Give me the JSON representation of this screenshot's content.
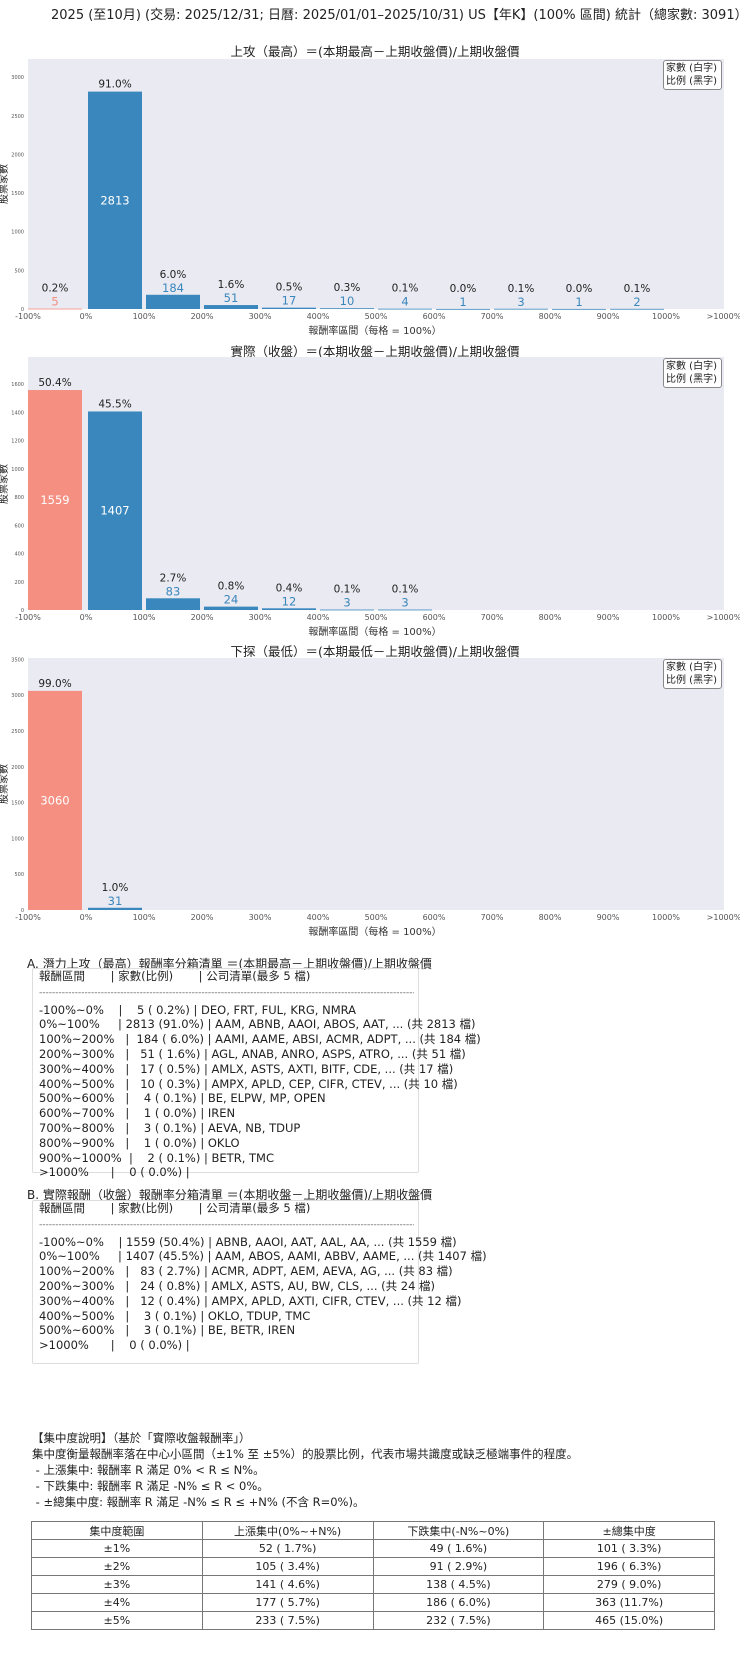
{
  "header": {
    "title": "2025 (至10月) (交易: 2025/12/31; 日曆: 2025/01/01–2025/10/31) US【年K】(100% 區間) 統計（總家數: 3091）"
  },
  "legend": {
    "line1": "家數 (白字)",
    "line2": "比例 (黑字)"
  },
  "colors": {
    "negative_bar": "#f58f82",
    "positive_bar": "#3a87bd",
    "plot_bg": "#eaeaf2"
  },
  "chart_data": [
    {
      "type": "bar",
      "title": "上攻（最高）＝(本期最高－上期收盤價)/上期收盤價",
      "xlabel": "報酬率區間（每格 = 100%）",
      "ylabel": "股票家數",
      "x_ticks": [
        "-100%",
        "0%",
        "100%",
        "200%",
        "300%",
        "400%",
        "500%",
        "600%",
        "700%",
        "800%",
        "900%",
        "1000%",
        ">1000%"
      ],
      "categories": [
        "-100%~0%",
        "0%~100%",
        "100%~200%",
        "200%~300%",
        "300%~400%",
        "400%~500%",
        "500%~600%",
        "600%~700%",
        "700%~800%",
        "800%~900%",
        "900%~1000%",
        ">1000%"
      ],
      "values": [
        5,
        2813,
        184,
        51,
        17,
        10,
        4,
        1,
        3,
        1,
        2,
        0
      ],
      "percent_labels": [
        "0.2%",
        "91.0%",
        "6.0%",
        "1.6%",
        "0.5%",
        "0.3%",
        "0.1%",
        "0.0%",
        "0.1%",
        "0.0%",
        "0.1%",
        ""
      ],
      "y_ticks": [
        0,
        500,
        1000,
        1500,
        2000,
        2500,
        3000
      ],
      "ylim": [
        0,
        3235
      ]
    },
    {
      "type": "bar",
      "title": "實際（收盤）＝(本期收盤－上期收盤價)/上期收盤價",
      "xlabel": "報酬率區間（每格 = 100%）",
      "ylabel": "股票家數",
      "x_ticks": [
        "-100%",
        "0%",
        "100%",
        "200%",
        "300%",
        "400%",
        "500%",
        "600%",
        "700%",
        "800%",
        "900%",
        "1000%",
        ">1000%"
      ],
      "categories": [
        "-100%~0%",
        "0%~100%",
        "100%~200%",
        "200%~300%",
        "300%~400%",
        "400%~500%",
        "500%~600%",
        "600%~700%",
        "700%~800%",
        "800%~900%",
        "900%~1000%",
        ">1000%"
      ],
      "values": [
        1559,
        1407,
        83,
        24,
        12,
        3,
        3,
        0,
        0,
        0,
        0,
        0
      ],
      "percent_labels": [
        "50.4%",
        "45.5%",
        "2.7%",
        "0.8%",
        "0.4%",
        "0.1%",
        "0.1%",
        "",
        "",
        "",
        "",
        ""
      ],
      "y_ticks": [
        0,
        200,
        400,
        600,
        800,
        1000,
        1200,
        1400,
        1600
      ],
      "ylim": [
        0,
        1793
      ]
    },
    {
      "type": "bar",
      "title": "下探（最低）＝(本期最低－上期收盤價)/上期收盤價",
      "xlabel": "報酬率區間（每格 = 100%）",
      "ylabel": "股票家數",
      "x_ticks": [
        "-100%",
        "0%",
        "100%",
        "200%",
        "300%",
        "400%",
        "500%",
        "600%",
        "700%",
        "800%",
        "900%",
        "1000%",
        ">1000%"
      ],
      "categories": [
        "-100%~0%",
        "0%~100%",
        "100%~200%",
        "200%~300%",
        "300%~400%",
        "400%~500%",
        "500%~600%",
        "600%~700%",
        "700%~800%",
        "800%~900%",
        "900%~1000%",
        ">1000%"
      ],
      "values": [
        3060,
        31,
        0,
        0,
        0,
        0,
        0,
        0,
        0,
        0,
        0,
        0
      ],
      "percent_labels": [
        "99.0%",
        "1.0%",
        "",
        "",
        "",
        "",
        "",
        "",
        "",
        "",
        "",
        ""
      ],
      "y_ticks": [
        0,
        500,
        1000,
        1500,
        2000,
        2500,
        3000,
        3500
      ],
      "ylim": [
        0,
        3519
      ]
    }
  ],
  "list_a": {
    "heading": "A. 潛力上攻（最高）報酬率分箱清單 ＝(本期最高－上期收盤價)/上期收盤價",
    "header": "報酬區間       | 家數(比例)       | 公司清單(最多 5 檔)",
    "separator": "--------------------------------------------------------------------------------------------------------------------------------",
    "rows": [
      "-100%~0%    |    5 ( 0.2%) | DEO, FRT, FUL, KRG, NMRA",
      "0%~100%     | 2813 (91.0%) | AAM, ABNB, AAOI, ABOS, AAT, ... (共 2813 檔)",
      "100%~200%   |  184 ( 6.0%) | AAMI, AAME, ABSI, ACMR, ADPT, ... (共 184 檔)",
      "200%~300%   |   51 ( 1.6%) | AGL, ANAB, ANRO, ASPS, ATRO, ... (共 51 檔)",
      "300%~400%   |   17 ( 0.5%) | AMLX, ASTS, AXTI, BITF, CDE, ... (共 17 檔)",
      "400%~500%   |   10 ( 0.3%) | AMPX, APLD, CEP, CIFR, CTEV, ... (共 10 檔)",
      "500%~600%   |    4 ( 0.1%) | BE, ELPW, MP, OPEN",
      "600%~700%   |    1 ( 0.0%) | IREN",
      "700%~800%   |    3 ( 0.1%) | AEVA, NB, TDUP",
      "800%~900%   |    1 ( 0.0%) | OKLO",
      "900%~1000%  |    2 ( 0.1%) | BETR, TMC",
      ">1000%      |    0 ( 0.0%) |"
    ]
  },
  "list_b": {
    "heading": "B. 實際報酬（收盤）報酬率分箱清單 ＝(本期收盤－上期收盤價)/上期收盤價",
    "header": "報酬區間       | 家數(比例)       | 公司清單(最多 5 檔)",
    "separator": "--------------------------------------------------------------------------------------------------------------------------------",
    "rows": [
      "-100%~0%    | 1559 (50.4%) | ABNB, AAOI, AAT, AAL, AA, ... (共 1559 檔)",
      "0%~100%     | 1407 (45.5%) | AAM, ABOS, AAMI, ABBV, AAME, ... (共 1407 檔)",
      "100%~200%   |   83 ( 2.7%) | ACMR, ADPT, AEM, AEVA, AG, ... (共 83 檔)",
      "200%~300%   |   24 ( 0.8%) | AMLX, ASTS, AU, BW, CLS, ... (共 24 檔)",
      "300%~400%   |   12 ( 0.4%) | AMPX, APLD, AXTI, CIFR, CTEV, ... (共 12 檔)",
      "400%~500%   |    3 ( 0.1%) | OKLO, TDUP, TMC",
      "500%~600%   |    3 ( 0.1%) | BE, BETR, IREN",
      ">1000%      |    0 ( 0.0%) |"
    ]
  },
  "concentration": {
    "lines": [
      "【集中度說明】（基於「實際收盤報酬率」）",
      "集中度衡量報酬率落在中心小區間（±1% 至 ±5%）的股票比例，代表市場共識度或缺乏極端事件的程度。",
      " - 上漲集中: 報酬率 R 滿足 0% < R ≤ N%。",
      " - 下跌集中: 報酬率 R 滿足 -N% ≤ R < 0%。",
      " - ±總集中度: 報酬率 R 滿足 -N% ≤ R ≤ +N% (不含 R=0%)。"
    ],
    "table": {
      "headers": [
        "集中度範圍",
        "上漲集中(0%~+N%)",
        "下跌集中(-N%~0%)",
        "±總集中度"
      ],
      "rows": [
        [
          "±1%",
          "52 ( 1.7%)",
          "49 ( 1.6%)",
          "101 ( 3.3%)"
        ],
        [
          "±2%",
          "105 ( 3.4%)",
          "91 ( 2.9%)",
          "196 ( 6.3%)"
        ],
        [
          "±3%",
          "141 ( 4.6%)",
          "138 ( 4.5%)",
          "279 ( 9.0%)"
        ],
        [
          "±4%",
          "177 ( 5.7%)",
          "186 ( 6.0%)",
          "363 (11.7%)"
        ],
        [
          "±5%",
          "233 ( 7.5%)",
          "232 ( 7.5%)",
          "465 (15.0%)"
        ]
      ]
    }
  }
}
